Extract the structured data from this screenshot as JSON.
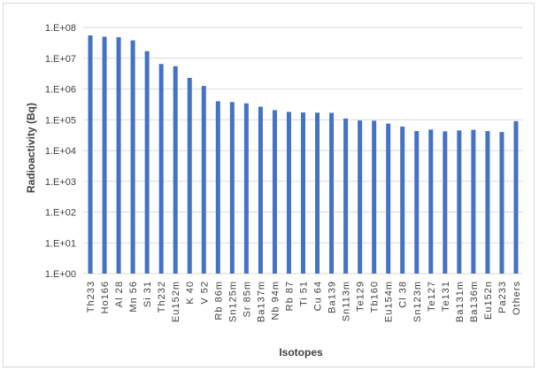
{
  "chart_data": {
    "type": "bar",
    "ylabel": "Radioactivity   (Bq)",
    "xlabel": "Isotopes",
    "y_scale": "log",
    "ylim": [
      1,
      100000000
    ],
    "y_tick_labels": [
      "1.E+00",
      "1.E+01",
      "1.E+02",
      "1.E+03",
      "1.E+04",
      "1.E+05",
      "1.E+06",
      "1.E+07",
      "1.E+08"
    ],
    "grid": true,
    "legend": "none",
    "bar_color": "#4472c4",
    "categories": [
      "Th233",
      "Ho166",
      "Al 28",
      "Mn 56",
      "Si 31",
      "Th232",
      "Eu152m",
      "K 40",
      "V 52",
      "Rb 86m",
      "Sn125m",
      "Sr 85m",
      "Ba137m",
      "Nb 94m",
      "Rb 87",
      "Ti 51",
      "Cu 64",
      "Ba139",
      "Sn113m",
      "Te129",
      "Tb160",
      "Eu154m",
      "Cl 38",
      "Sn123m",
      "Te127",
      "Te131",
      "Ba131m",
      "Ba136m",
      "Eu152n",
      "Pa233",
      "Others"
    ],
    "values": [
      55000000,
      50000000,
      48000000,
      38000000,
      17000000,
      6500000,
      5500000,
      2300000,
      1250000,
      400000,
      375000,
      340000,
      265000,
      205000,
      180000,
      172000,
      170000,
      168000,
      110000,
      95000,
      93000,
      75000,
      60000,
      43000,
      48000,
      42000,
      45000,
      47000,
      43000,
      40000,
      90000
    ]
  }
}
